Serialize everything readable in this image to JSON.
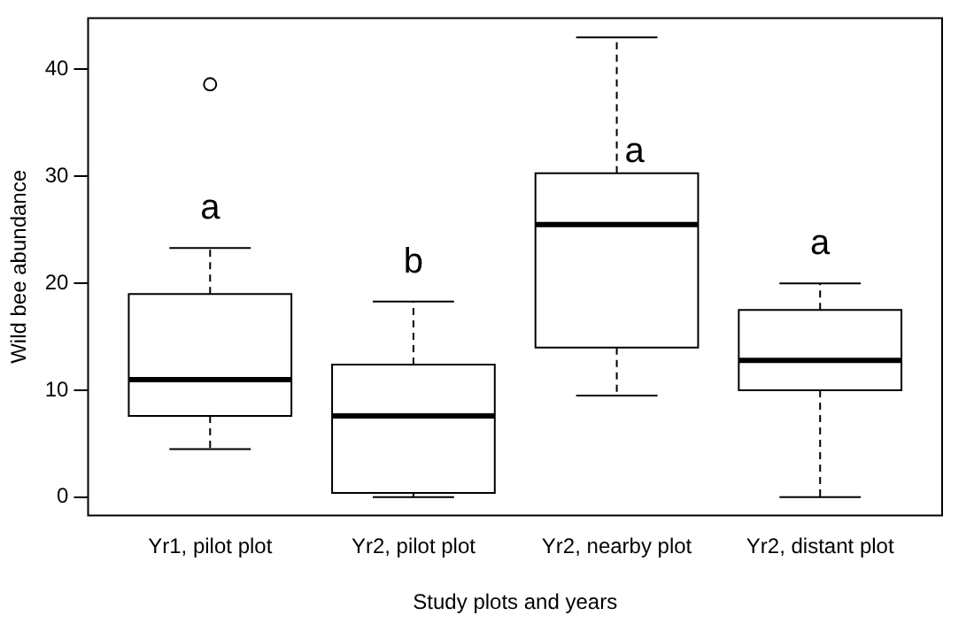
{
  "chart_data": {
    "type": "box",
    "xlabel": "Study plots and years",
    "ylabel": "Wild bee abundance",
    "categories": [
      "Yr1, pilot plot",
      "Yr2, pilot plot",
      "Yr2, nearby plot",
      "Yr2, distant plot"
    ],
    "boxes": [
      {
        "low": 4.5,
        "q1": 7.6,
        "median": 11.0,
        "q3": 19.0,
        "high": 23.3,
        "outliers": [
          38.6
        ]
      },
      {
        "low": 0,
        "q1": 0.4,
        "median": 7.6,
        "q3": 12.4,
        "high": 18.3
      },
      {
        "low": 9.5,
        "q1": 14.0,
        "median": 25.5,
        "q3": 30.3,
        "high": 43.0
      },
      {
        "low": 0,
        "q1": 10.0,
        "median": 12.8,
        "q3": 17.5,
        "high": 20.0
      }
    ],
    "ylim": [
      -1.7,
      44.8
    ],
    "yticks": [
      0,
      10,
      20,
      30,
      40
    ],
    "grid": false,
    "legend": false,
    "annotations": [
      "a",
      "b",
      "a",
      "a"
    ]
  }
}
